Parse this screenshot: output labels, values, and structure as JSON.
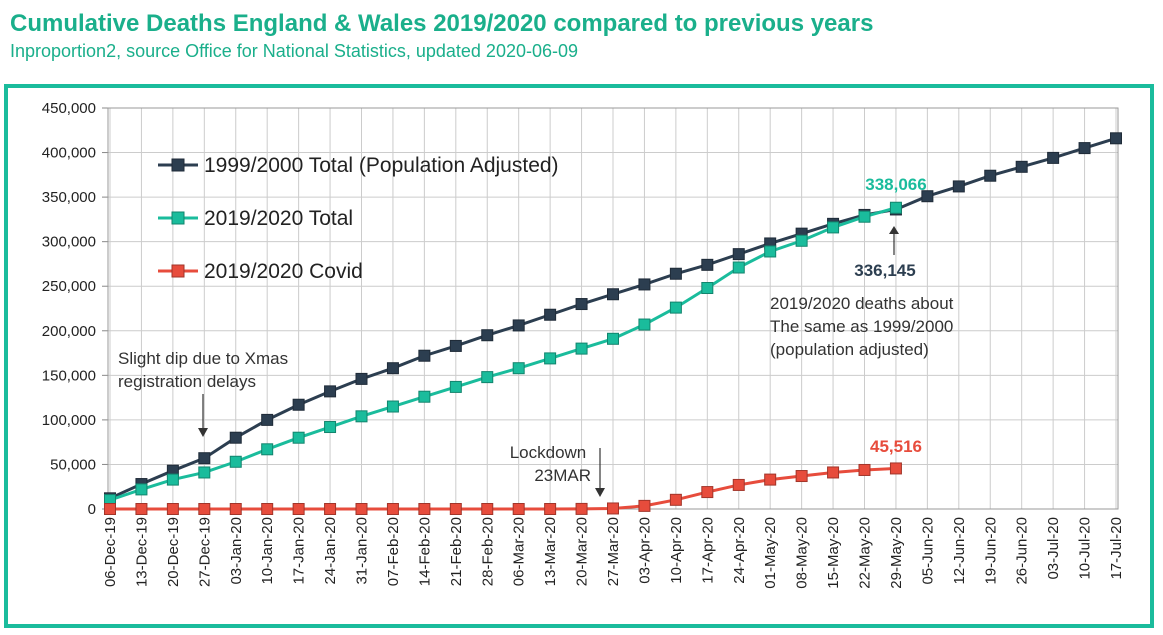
{
  "chart_data": {
    "type": "line",
    "title": "Cumulative Deaths England & Wales 2019/2020 compared to previous years",
    "subtitle": "Inproportion2, source Office for National Statistics, updated 2020-06-09",
    "categories": [
      "06-Dec-19",
      "13-Dec-19",
      "20-Dec-19",
      "27-Dec-19",
      "03-Jan-20",
      "10-Jan-20",
      "17-Jan-20",
      "24-Jan-20",
      "31-Jan-20",
      "07-Feb-20",
      "14-Feb-20",
      "21-Feb-20",
      "28-Feb-20",
      "06-Mar-20",
      "13-Mar-20",
      "20-Mar-20",
      "27-Mar-20",
      "03-Apr-20",
      "10-Apr-20",
      "17-Apr-20",
      "24-Apr-20",
      "01-May-20",
      "08-May-20",
      "15-May-20",
      "22-May-20",
      "29-May-20",
      "05-Jun-20",
      "12-Jun-20",
      "19-Jun-20",
      "26-Jun-20",
      "03-Jul-20",
      "10-Jul-20",
      "17-Jul-20"
    ],
    "series": [
      {
        "name": "1999/2000 Total (Population Adjusted)",
        "color": "#2c3e50",
        "values": [
          12000,
          28000,
          43000,
          57000,
          80000,
          100000,
          117000,
          132000,
          146000,
          158000,
          172000,
          183000,
          195000,
          206000,
          218000,
          230000,
          241000,
          252000,
          264000,
          274000,
          286000,
          298000,
          309000,
          320000,
          330000,
          336145,
          351000,
          362000,
          374000,
          384000,
          394000,
          405000,
          416000
        ]
      },
      {
        "name": "2019/2020 Total",
        "color": "#1abc9c",
        "values": [
          10000,
          22000,
          33000,
          41000,
          53000,
          67000,
          80000,
          92000,
          104000,
          115000,
          126000,
          137000,
          148000,
          158000,
          169000,
          180000,
          191000,
          207000,
          226000,
          248000,
          271000,
          289000,
          301000,
          316000,
          328000,
          338066,
          null,
          null,
          null,
          null,
          null,
          null,
          null
        ]
      },
      {
        "name": "2019/2020 Covid",
        "color": "#e74c3c",
        "values": [
          0,
          0,
          0,
          0,
          0,
          0,
          0,
          0,
          0,
          0,
          0,
          0,
          0,
          0,
          0,
          100,
          600,
          3500,
          10300,
          19000,
          27000,
          33000,
          37000,
          41000,
          43800,
          45516,
          null,
          null,
          null,
          null,
          null,
          null,
          null
        ]
      }
    ],
    "ylim": [
      0,
      450000
    ],
    "yticks": [
      0,
      {
        "value": 50000,
        "label": "50,000"
      },
      {
        "value": 100000,
        "label": "100,000"
      },
      {
        "value": 150000,
        "label": "150,000"
      },
      {
        "value": 200000,
        "label": "200,000"
      },
      {
        "value": 250000,
        "label": "250,000"
      },
      {
        "value": 300000,
        "label": "300,000"
      },
      {
        "value": 350000,
        "label": "350,000"
      },
      {
        "value": 400000,
        "label": "400,000"
      },
      {
        "value": 450000,
        "label": "450,000"
      }
    ],
    "grid": true,
    "legend": "upper left",
    "annotations": [
      {
        "text": [
          "338,066"
        ]
      },
      {
        "text": [
          "336,145"
        ]
      },
      {
        "text": [
          "2019/2020 deaths about",
          "The same as 1999/2000",
          "(population adjusted)"
        ]
      },
      {
        "text": [
          "Slight dip due to Xmas",
          "registration delays"
        ]
      },
      {
        "text": [
          "Lockdown",
          "23MAR"
        ]
      },
      {
        "text": [
          "45,516"
        ]
      }
    ]
  }
}
